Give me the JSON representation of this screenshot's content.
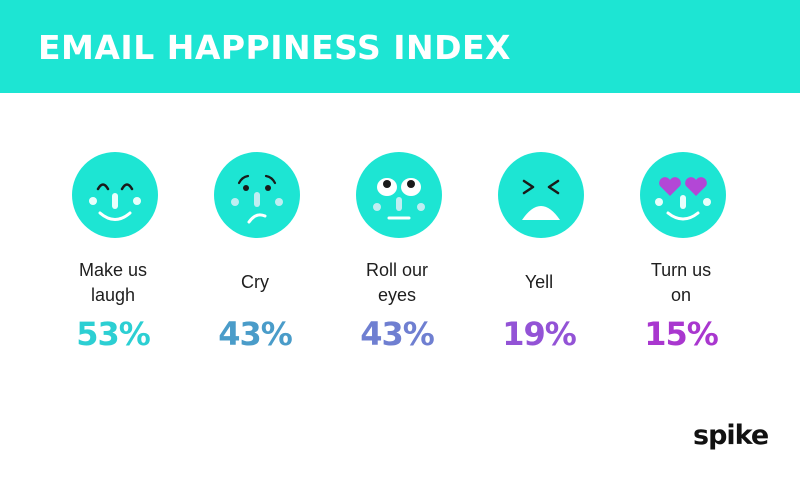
{
  "header": {
    "title": "EMAIL HAPPINESS INDEX"
  },
  "colors": {
    "header_bg": "#1de5d3",
    "emoji_face": "#1de5d3",
    "title_text": "#ffffff"
  },
  "chart_data": {
    "type": "table",
    "title": "EMAIL HAPPINESS INDEX",
    "categories": [
      "Make us laugh",
      "Cry",
      "Roll our eyes",
      "Yell",
      "Turn us on"
    ],
    "values": [
      53,
      43,
      43,
      19,
      15
    ],
    "unit": "%",
    "items": [
      {
        "label": "Make us\nlaugh",
        "value_text": "53%",
        "value": 53,
        "color": "#2ccfd3",
        "icon": "laughing-face-icon"
      },
      {
        "label": "Cry",
        "value_text": "43%",
        "value": 43,
        "color": "#4a9cc9",
        "icon": "crying-face-icon"
      },
      {
        "label": "Roll our\neyes",
        "value_text": "43%",
        "value": 43,
        "color": "#6f7fd1",
        "icon": "eye-roll-face-icon"
      },
      {
        "label": "Yell",
        "value_text": "19%",
        "value": 19,
        "color": "#9353d6",
        "icon": "yelling-face-icon"
      },
      {
        "label": "Turn us\non",
        "value_text": "15%",
        "value": 15,
        "color": "#a937cf",
        "icon": "heart-eyes-face-icon"
      }
    ]
  },
  "brand": {
    "logo_text": "spike"
  }
}
